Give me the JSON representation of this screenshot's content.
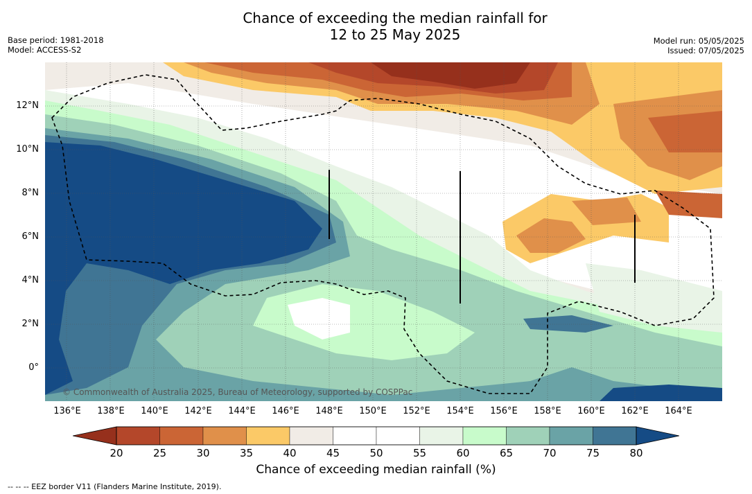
{
  "title_line1": "Chance of exceeding the median rainfall for",
  "title_line2": "12 to 25 May 2025",
  "base_period": "Base period: 1981-2018",
  "model": "Model: ACCESS-S2",
  "model_run": "Model run: 05/05/2025",
  "issued": "Issued: 07/05/2025",
  "lat_labels": [
    "12°N",
    "10°N",
    "8°N",
    "6°N",
    "4°N",
    "2°N",
    "0°"
  ],
  "lon_labels": [
    "136°E",
    "138°E",
    "140°E",
    "142°E",
    "144°E",
    "146°E",
    "148°E",
    "150°E",
    "152°E",
    "154°E",
    "156°E",
    "158°E",
    "160°E",
    "162°E",
    "164°E"
  ],
  "copyright": "© Commonwealth of Australia 2025, Bureau of Meteorology, supported by COSPPac",
  "colorbar": {
    "ticks": [
      "20",
      "25",
      "30",
      "35",
      "40",
      "45",
      "50",
      "55",
      "60",
      "65",
      "70",
      "75",
      "80"
    ],
    "colors": [
      "#96301c",
      "#b4472a",
      "#cb6535",
      "#e0904a",
      "#fbc967",
      "#f1ece6",
      "#ffffff",
      "#ffffff",
      "#e9f4e7",
      "#c8fbcb",
      "#9fd1b8",
      "#6aa3a6",
      "#407594",
      "#154b85"
    ],
    "title": "Chance of exceeding median rainfall (%)"
  },
  "eez_legend": "--  --  -- EEZ border V11 (Flanders Marine Institute, 2019)."
}
